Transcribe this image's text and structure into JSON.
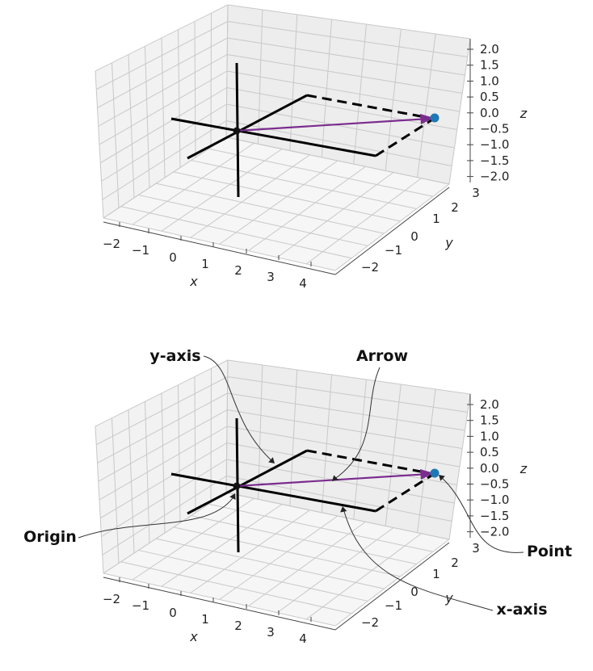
{
  "panels": [
    {
      "id": "top",
      "xlabel": "x",
      "ylabel": "y",
      "zlabel": "z",
      "x_ticks": [
        "−2",
        "−1",
        "0",
        "1",
        "2",
        "3",
        "4"
      ],
      "y_ticks": [
        "−2",
        "−1",
        "0",
        "1",
        "2",
        "3"
      ],
      "z_ticks": [
        "2.0",
        "1.5",
        "1.0",
        "0.5",
        "0.0",
        "−0.5",
        "−1.0",
        "−1.5",
        "−2.0"
      ],
      "callouts": []
    },
    {
      "id": "bottom",
      "xlabel": "x",
      "ylabel": "y",
      "zlabel": "z",
      "x_ticks": [
        "−2",
        "−1",
        "0",
        "1",
        "2",
        "3",
        "4"
      ],
      "y_ticks": [
        "−2",
        "−1",
        "0",
        "1",
        "2",
        "3"
      ],
      "z_ticks": [
        "2.0",
        "1.5",
        "1.0",
        "0.5",
        "0.0",
        "−0.5",
        "−1.0",
        "−1.5",
        "−2.0"
      ],
      "callouts": [
        "y-axis",
        "Arrow",
        "Origin",
        "Point",
        "x-axis"
      ]
    }
  ],
  "colors": {
    "arrow": "#7b2d8e",
    "point": "#1f77b4",
    "axes": "#000000",
    "grid": "#c8c8c8",
    "pane": "#f2f2f2"
  }
}
